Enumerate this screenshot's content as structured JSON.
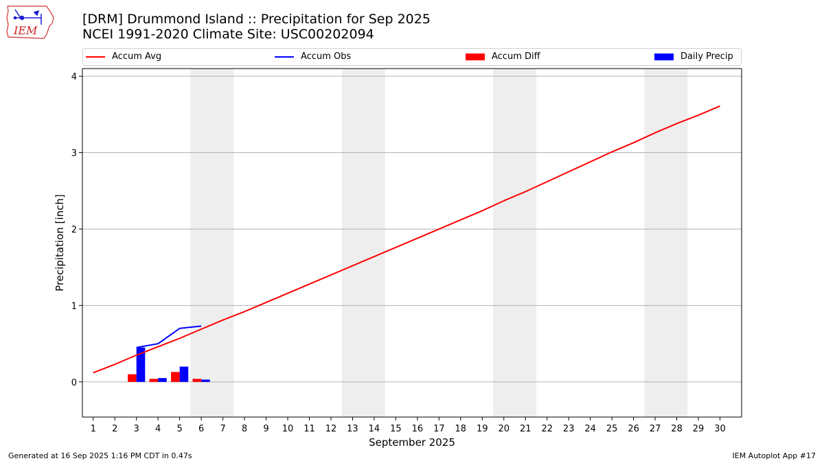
{
  "header": {
    "title_line1": "[DRM] Drummond Island :: Precipitation for Sep 2025",
    "title_line2": "NCEI 1991-2020 Climate Site: USC00202094",
    "logo_text": "IEM"
  },
  "footer": {
    "generated": "Generated at 16 Sep 2025 1:16 PM CDT in 0.47s",
    "app": "IEM Autoplot App #17"
  },
  "colors": {
    "avg": "#ff0000",
    "obs": "#0000ff",
    "diff": "#ff0000",
    "daily": "#0000ff",
    "weekend_band": "#eeeeee",
    "grid": "#b0b0b0"
  },
  "chart_data": {
    "type": "line",
    "title": "[DRM] Drummond Island :: Precipitation for Sep 2025",
    "subtitle": "NCEI 1991-2020 Climate Site: USC00202094",
    "xlabel": "September 2025",
    "ylabel": "Precipitation [inch]",
    "xlim": [
      0.5,
      31
    ],
    "ylim": [
      -0.46,
      4.1
    ],
    "yticks": [
      0,
      1,
      2,
      3,
      4
    ],
    "x": [
      1,
      2,
      3,
      4,
      5,
      6,
      7,
      8,
      9,
      10,
      11,
      12,
      13,
      14,
      15,
      16,
      17,
      18,
      19,
      20,
      21,
      22,
      23,
      24,
      25,
      26,
      27,
      28,
      29,
      30
    ],
    "grid": "horizontal",
    "legend_position": "top, above plot, 4 columns",
    "weekend_bands": [
      [
        6,
        7
      ],
      [
        13,
        14
      ],
      [
        20,
        21
      ],
      [
        27,
        28
      ]
    ],
    "legend": [
      "Accum Avg",
      "Accum Obs",
      "Accum Diff",
      "Daily Precip"
    ],
    "series": [
      {
        "name": "Accum Avg",
        "kind": "line",
        "color": "#ff0000",
        "x": [
          1,
          2,
          3,
          4,
          5,
          6,
          7,
          8,
          9,
          10,
          11,
          12,
          13,
          14,
          15,
          16,
          17,
          18,
          19,
          20,
          21,
          22,
          23,
          24,
          25,
          26,
          27,
          28,
          29,
          30
        ],
        "values": [
          0.12,
          0.23,
          0.35,
          0.46,
          0.57,
          0.69,
          0.81,
          0.92,
          1.04,
          1.16,
          1.28,
          1.4,
          1.52,
          1.64,
          1.76,
          1.88,
          2.0,
          2.12,
          2.24,
          2.37,
          2.49,
          2.62,
          2.75,
          2.88,
          3.01,
          3.13,
          3.26,
          3.38,
          3.49,
          3.61
        ]
      },
      {
        "name": "Accum Obs",
        "kind": "line",
        "color": "#0000ff",
        "x": [
          3,
          4,
          5,
          6
        ],
        "values": [
          0.45,
          0.5,
          0.7,
          0.73
        ]
      },
      {
        "name": "Accum Diff",
        "kind": "bar",
        "color": "#ff0000",
        "x": [
          3,
          4,
          5,
          6
        ],
        "values": [
          0.1,
          0.04,
          0.13,
          0.04
        ]
      },
      {
        "name": "Daily Precip",
        "kind": "bar",
        "color": "#0000ff",
        "x": [
          3,
          4,
          5,
          6
        ],
        "values": [
          0.45,
          0.05,
          0.2,
          0.03
        ]
      }
    ]
  }
}
